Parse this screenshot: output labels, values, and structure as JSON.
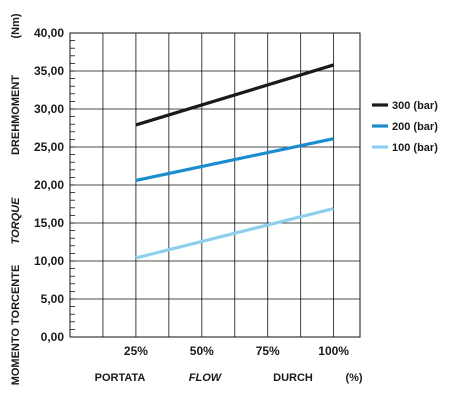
{
  "chart_data": {
    "type": "line",
    "x": [
      25,
      100
    ],
    "x_tick_labels": [
      "25%",
      "50%",
      "75%",
      "100%"
    ],
    "x_ticks": [
      25,
      50,
      75,
      100
    ],
    "xlim": [
      0,
      110
    ],
    "y_tick_labels": [
      "0,00",
      "5,00",
      "10,00",
      "15,00",
      "20,00",
      "25,00",
      "30,00",
      "35,00",
      "40,00"
    ],
    "y_ticks": [
      0,
      5,
      10,
      15,
      20,
      25,
      30,
      35,
      40
    ],
    "ylim": [
      0,
      40
    ],
    "grid": true,
    "legend_position": "right",
    "series": [
      {
        "name": "300 (bar)",
        "color": "#1a1a1a",
        "values": [
          27.9,
          35.8
        ]
      },
      {
        "name": "200 (bar)",
        "color": "#1b8ccf",
        "values": [
          20.6,
          26.1
        ]
      },
      {
        "name": "100 (bar)",
        "color": "#8fd0ef",
        "values": [
          10.4,
          16.9
        ]
      }
    ],
    "xlabel_parts": [
      {
        "text": "PORTATA",
        "italic": false
      },
      {
        "text": "FLOW",
        "italic": true
      },
      {
        "text": "DURCH",
        "italic": false
      },
      {
        "text": "(%)",
        "italic": false
      }
    ],
    "ylabel_parts": [
      {
        "text": "MOMENTO TORCENTE",
        "italic": false
      },
      {
        "text": "TORQUE",
        "italic": true
      },
      {
        "text": "DREHMOMENT",
        "italic": false
      },
      {
        "text": "(Nm)",
        "italic": false
      }
    ]
  }
}
